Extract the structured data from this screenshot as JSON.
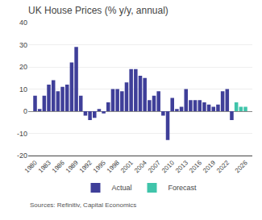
{
  "chart_data": {
    "type": "bar",
    "title": "UK House Prices (% y/y, annual)",
    "series": [
      {
        "name": "Actual",
        "color": "#3f3f99",
        "x": [
          1980,
          1981,
          1982,
          1983,
          1984,
          1985,
          1986,
          1987,
          1988,
          1989,
          1990,
          1991,
          1992,
          1993,
          1994,
          1995,
          1996,
          1997,
          1998,
          1999,
          2000,
          2001,
          2002,
          2003,
          2004,
          2005,
          2006,
          2007,
          2008,
          2009,
          2010,
          2011,
          2012,
          2013,
          2014,
          2015,
          2016,
          2017,
          2018,
          2019,
          2020,
          2021,
          2022,
          2023
        ],
        "values": [
          7,
          1,
          7,
          12,
          14,
          9,
          11,
          12,
          22,
          29,
          7,
          -2,
          -4,
          -3,
          1,
          -1,
          4,
          10,
          10,
          9,
          13,
          19,
          19,
          16,
          15,
          5,
          7,
          9,
          -2,
          -13,
          6,
          1,
          2,
          10,
          5,
          5,
          5,
          4,
          3,
          2,
          3,
          9,
          10,
          -4
        ]
      },
      {
        "name": "Forecast",
        "color": "#40c4aa",
        "x": [
          2024,
          2025,
          2026
        ],
        "values": [
          4,
          2,
          2
        ]
      }
    ],
    "xlim": [
      1978.5,
      2027.5
    ],
    "xticks": [
      1980,
      1983,
      1986,
      1989,
      1992,
      1995,
      1998,
      2001,
      2004,
      2007,
      2010,
      2013,
      2016,
      2019,
      2022,
      2026
    ],
    "ylim": [
      -20,
      40
    ],
    "yticks": [
      -20,
      -10,
      0,
      10,
      20,
      30,
      40
    ],
    "grid": true,
    "legend": "bottom",
    "annotations": [
      "Sources: Refinitiv, Capital Economics"
    ]
  }
}
